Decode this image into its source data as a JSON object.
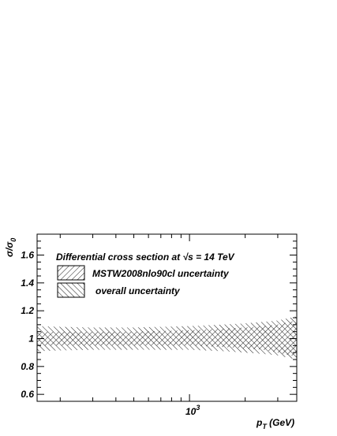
{
  "chart_data": {
    "type": "area",
    "title": "Differential cross section at √s = 14 TeV",
    "xlabel_main": "p",
    "xlabel_sub": "T",
    "xlabel_rest": " (GeV)",
    "ylabel_main": "σ/σ",
    "ylabel_sub": "0",
    "x_scale": "log",
    "xlim": [
      150,
      3800
    ],
    "ylim": [
      0.55,
      1.75
    ],
    "y_ticks": [
      0.6,
      0.8,
      1.0,
      1.2,
      1.4,
      1.6
    ],
    "y_tick_labels": [
      "0.6",
      "0.8",
      "1",
      "1.2",
      "1.4",
      "1.6"
    ],
    "x_tick_label_base": "10",
    "x_tick_label_exp": "3",
    "x_tick_label_value": 1000,
    "legend_position": "top-left",
    "grid": false,
    "series": [
      {
        "name": "MSTW2008nlo90cl uncertainty",
        "hatch": "forward",
        "x": [
          150,
          200,
          300,
          500,
          700,
          1000,
          1500,
          2000,
          2500,
          3000,
          3500,
          3800
        ],
        "upper": [
          1.05,
          1.05,
          1.05,
          1.05,
          1.055,
          1.06,
          1.07,
          1.08,
          1.09,
          1.1,
          1.12,
          1.13
        ],
        "lower": [
          0.95,
          0.95,
          0.95,
          0.95,
          0.95,
          0.95,
          0.94,
          0.93,
          0.92,
          0.9,
          0.88,
          0.87
        ]
      },
      {
        "name": "overall uncertainty",
        "hatch": "backward",
        "x": [
          150,
          200,
          300,
          500,
          700,
          1000,
          1500,
          2000,
          2500,
          3000,
          3500,
          3800
        ],
        "upper": [
          1.09,
          1.085,
          1.08,
          1.08,
          1.085,
          1.09,
          1.1,
          1.11,
          1.12,
          1.13,
          1.15,
          1.16
        ],
        "lower": [
          0.91,
          0.915,
          0.92,
          0.92,
          0.92,
          0.92,
          0.91,
          0.9,
          0.89,
          0.88,
          0.86,
          0.85
        ]
      }
    ]
  }
}
